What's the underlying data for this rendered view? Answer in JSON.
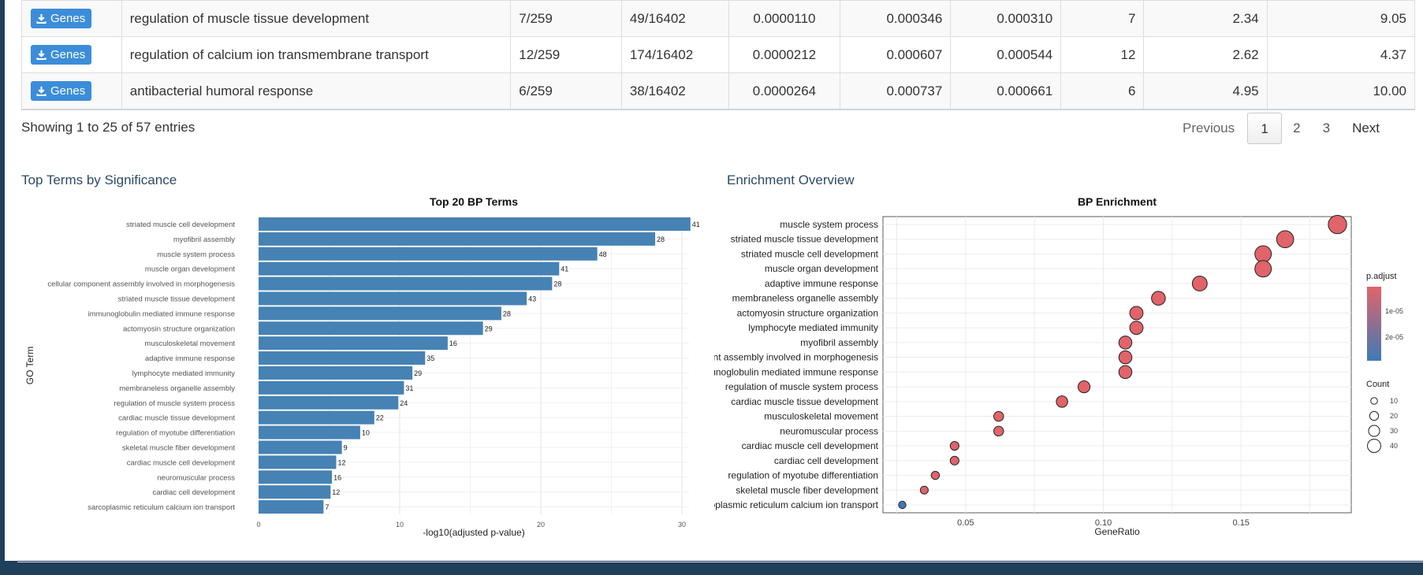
{
  "table": {
    "button_label": "Genes",
    "rows": [
      {
        "term": "regulation of muscle tissue development",
        "gene_ratio": "7/259",
        "bg_ratio": "49/16402",
        "pvalue": "0.0000110",
        "padj": "0.000346",
        "qvalue": "0.000310",
        "count": "7",
        "fold": "2.34",
        "score": "9.05"
      },
      {
        "term": "regulation of calcium ion transmembrane transport",
        "gene_ratio": "12/259",
        "bg_ratio": "174/16402",
        "pvalue": "0.0000212",
        "padj": "0.000607",
        "qvalue": "0.000544",
        "count": "12",
        "fold": "2.62",
        "score": "4.37"
      },
      {
        "term": "antibacterial humoral response",
        "gene_ratio": "6/259",
        "bg_ratio": "38/16402",
        "pvalue": "0.0000264",
        "padj": "0.000737",
        "qvalue": "0.000661",
        "count": "6",
        "fold": "4.95",
        "score": "10.00"
      }
    ]
  },
  "info": "Showing 1 to 25 of 57 entries",
  "pagination": {
    "previous": "Previous",
    "pages": [
      "1",
      "2",
      "3"
    ],
    "next": "Next",
    "active": "1"
  },
  "left_panel": {
    "title": "Top Terms by Significance"
  },
  "right_panel": {
    "title": "Enrichment Overview"
  },
  "chart_data": [
    {
      "type": "bar",
      "orientation": "horizontal",
      "title": "Top 20 BP Terms",
      "xlabel": "-log10(adjusted p-value)",
      "ylabel": "GO Term",
      "xlim": [
        0,
        30.5
      ],
      "xticks": [
        0,
        10,
        20,
        30
      ],
      "grid": true,
      "color": "#4682b4",
      "categories": [
        "striated muscle cell development",
        "myofibril assembly",
        "muscle system process",
        "muscle organ development",
        "cellular component assembly involved in morphogenesis",
        "striated muscle tissue development",
        "immunoglobulin mediated immune response",
        "actomyosin structure organization",
        "musculoskeletal movement",
        "adaptive immune response",
        "lymphocyte mediated immunity",
        "membraneless organelle assembly",
        "regulation of muscle system process",
        "cardiac muscle tissue development",
        "regulation of myotube differentiation",
        "skeletal muscle fiber development",
        "cardiac muscle cell development",
        "neuromuscular process",
        "cardiac cell development",
        "sarcoplasmic reticulum calcium ion transport"
      ],
      "values": [
        30.6,
        28.1,
        24.0,
        21.3,
        20.8,
        19.0,
        17.2,
        15.9,
        13.4,
        11.8,
        10.9,
        10.3,
        9.9,
        8.2,
        7.2,
        5.9,
        5.5,
        5.2,
        5.1,
        4.6
      ],
      "labels": [
        "41",
        "28",
        "48",
        "41",
        "28",
        "43",
        "28",
        "29",
        "16",
        "35",
        "29",
        "31",
        "24",
        "22",
        "10",
        "9",
        "12",
        "16",
        "12",
        "7"
      ]
    },
    {
      "type": "scatter",
      "title": "BP Enrichment",
      "xlabel": "GeneRatio",
      "xticks": [
        0.05,
        0.1,
        0.15
      ],
      "xlim": [
        0.02,
        0.19
      ],
      "grid": true,
      "legend_position": "right",
      "color_title": "p.adjust",
      "color_ticks": [
        "1e-05",
        "2e-05"
      ],
      "color_high": "#e0646a",
      "color_low": "#3f7ab6",
      "size_title": "Count",
      "size_ticks": [
        10,
        20,
        30,
        40
      ],
      "terms": [
        "muscle system process",
        "striated muscle tissue development",
        "striated muscle cell development",
        "muscle organ development",
        "adaptive immune response",
        "membraneless organelle assembly",
        "actomyosin structure organization",
        "lymphocyte mediated immunity",
        "myofibril assembly",
        "cellular component assembly involved in morphogenesis",
        "immunoglobulin mediated immune response",
        "regulation of muscle system process",
        "cardiac muscle tissue development",
        "musculoskeletal movement",
        "neuromuscular process",
        "cardiac muscle cell development",
        "cardiac cell development",
        "regulation of myotube differentiation",
        "skeletal muscle fiber development",
        "sarcoplasmic reticulum calcium ion transport"
      ],
      "x": [
        0.185,
        0.166,
        0.158,
        0.158,
        0.135,
        0.12,
        0.112,
        0.112,
        0.108,
        0.108,
        0.108,
        0.093,
        0.085,
        0.062,
        0.062,
        0.046,
        0.046,
        0.039,
        0.035,
        0.027
      ],
      "count": [
        48,
        43,
        41,
        41,
        35,
        31,
        29,
        29,
        28,
        28,
        28,
        24,
        22,
        16,
        16,
        12,
        12,
        10,
        9,
        7
      ],
      "p_adjust_level": [
        0.0,
        0.0,
        0.0,
        0.0,
        0.0,
        0.0,
        0.0,
        0.0,
        0.0,
        0.0,
        0.0,
        0.0,
        0.0,
        0.0,
        0.0,
        0.0,
        0.0,
        0.0,
        0.0,
        1.0
      ]
    }
  ]
}
